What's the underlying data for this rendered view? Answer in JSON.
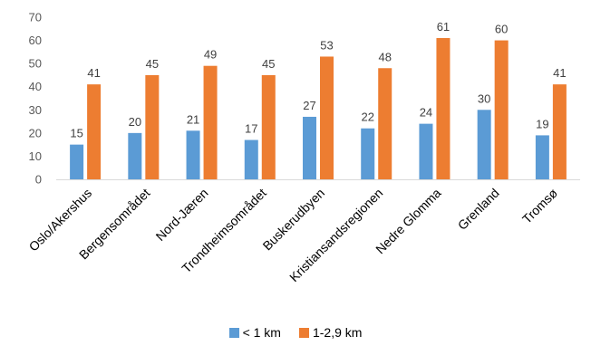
{
  "chart_data": {
    "type": "bar",
    "categories": [
      "Oslo/Akershus",
      "Bergensområdet",
      "Nord-Jæren",
      "Trondheimsområdet",
      "Buskerudbyen",
      "Kristiansandsregionen",
      "Nedre Glomma",
      "Grenland",
      "Tromsø"
    ],
    "series": [
      {
        "name": "< 1 km",
        "values": [
          15,
          20,
          21,
          17,
          27,
          22,
          24,
          30,
          19
        ],
        "color": "#5B9BD5"
      },
      {
        "name": "1-2,9 km",
        "values": [
          41,
          45,
          49,
          45,
          53,
          48,
          61,
          60,
          41
        ],
        "color": "#ED7D31"
      }
    ],
    "ylim": [
      0,
      70
    ],
    "yticks": [
      0,
      10,
      20,
      30,
      40,
      50,
      60,
      70
    ],
    "grid": false,
    "legend": "bottom",
    "data_labels": true
  }
}
